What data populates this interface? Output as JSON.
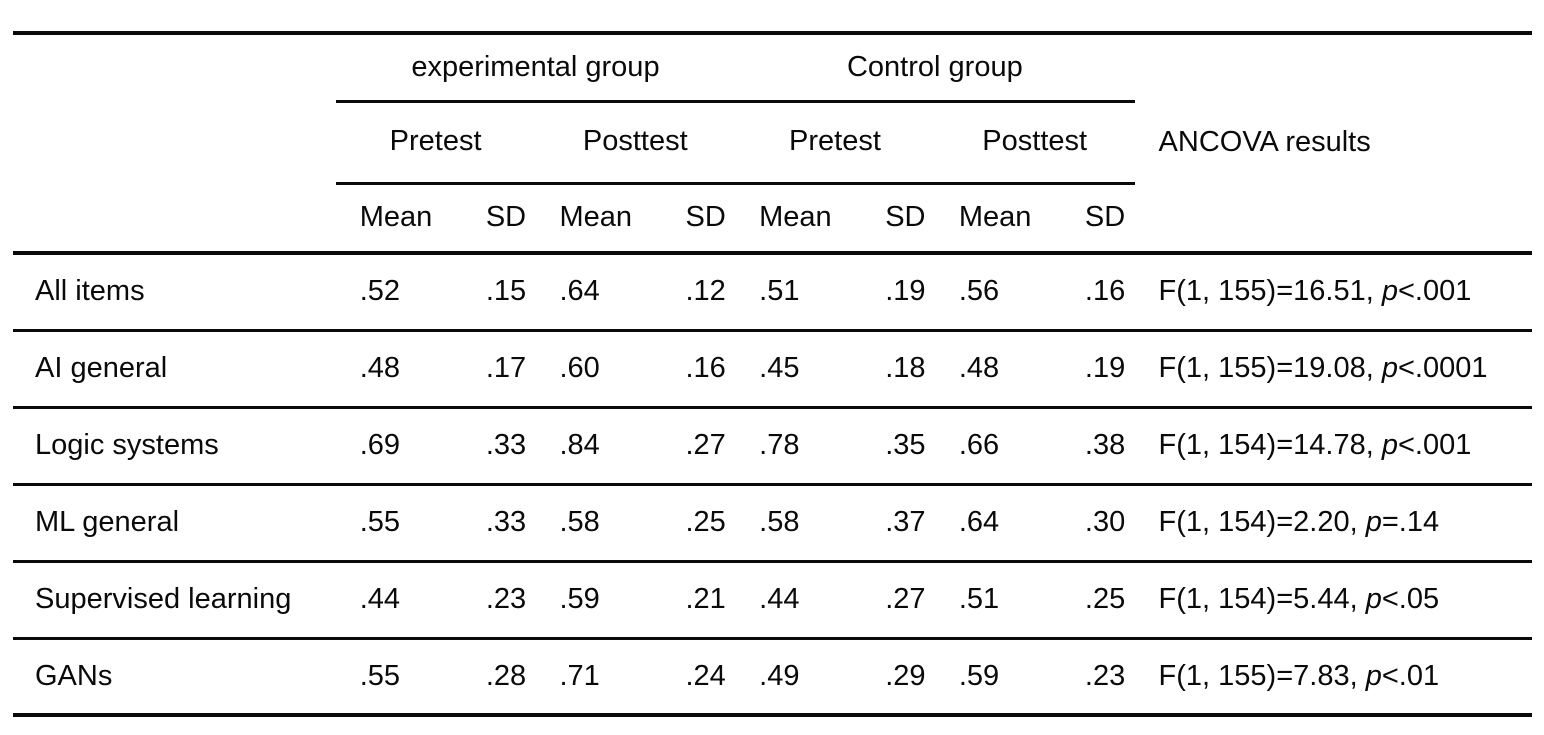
{
  "table": {
    "group_headers": [
      "experimental group",
      "Control group"
    ],
    "subgroup_headers": [
      "Pretest",
      "Posttest",
      "Pretest",
      "Posttest"
    ],
    "stat_headers": [
      "Mean",
      "SD",
      "Mean",
      "SD",
      "Mean",
      "SD",
      "Mean",
      "SD"
    ],
    "ancova_header": "ANCOVA results",
    "rows": [
      {
        "label": "All items",
        "values": [
          ".52",
          ".15",
          ".64",
          ".12",
          ".51",
          ".19",
          ".56",
          ".16"
        ],
        "f_part": "F(1, 155)=16.51, ",
        "p_symbol": "p",
        "p_rest": "<.001"
      },
      {
        "label": "AI general",
        "values": [
          ".48",
          ".17",
          ".60",
          ".16",
          ".45",
          ".18",
          ".48",
          ".19"
        ],
        "f_part": "F(1, 155)=19.08, ",
        "p_symbol": "p",
        "p_rest": "<.0001"
      },
      {
        "label": "Logic systems",
        "values": [
          ".69",
          ".33",
          ".84",
          ".27",
          ".78",
          ".35",
          ".66",
          ".38"
        ],
        "f_part": "F(1, 154)=14.78, ",
        "p_symbol": "p",
        "p_rest": "<.001"
      },
      {
        "label": "ML general",
        "values": [
          ".55",
          ".33",
          ".58",
          ".25",
          ".58",
          ".37",
          ".64",
          ".30"
        ],
        "f_part": "F(1, 154)=2.20, ",
        "p_symbol": "p",
        "p_rest": "=.14"
      },
      {
        "label": "Supervised learning",
        "values": [
          ".44",
          ".23",
          ".59",
          ".21",
          ".44",
          ".27",
          ".51",
          ".25"
        ],
        "f_part": "F(1, 154)=5.44, ",
        "p_symbol": "p",
        "p_rest": "<.05"
      },
      {
        "label": "GANs",
        "values": [
          ".55",
          ".28",
          ".71",
          ".24",
          ".49",
          ".29",
          ".59",
          ".23"
        ],
        "f_part": "F(1, 155)=7.83, ",
        "p_symbol": "p",
        "p_rest": "<.01"
      }
    ]
  }
}
